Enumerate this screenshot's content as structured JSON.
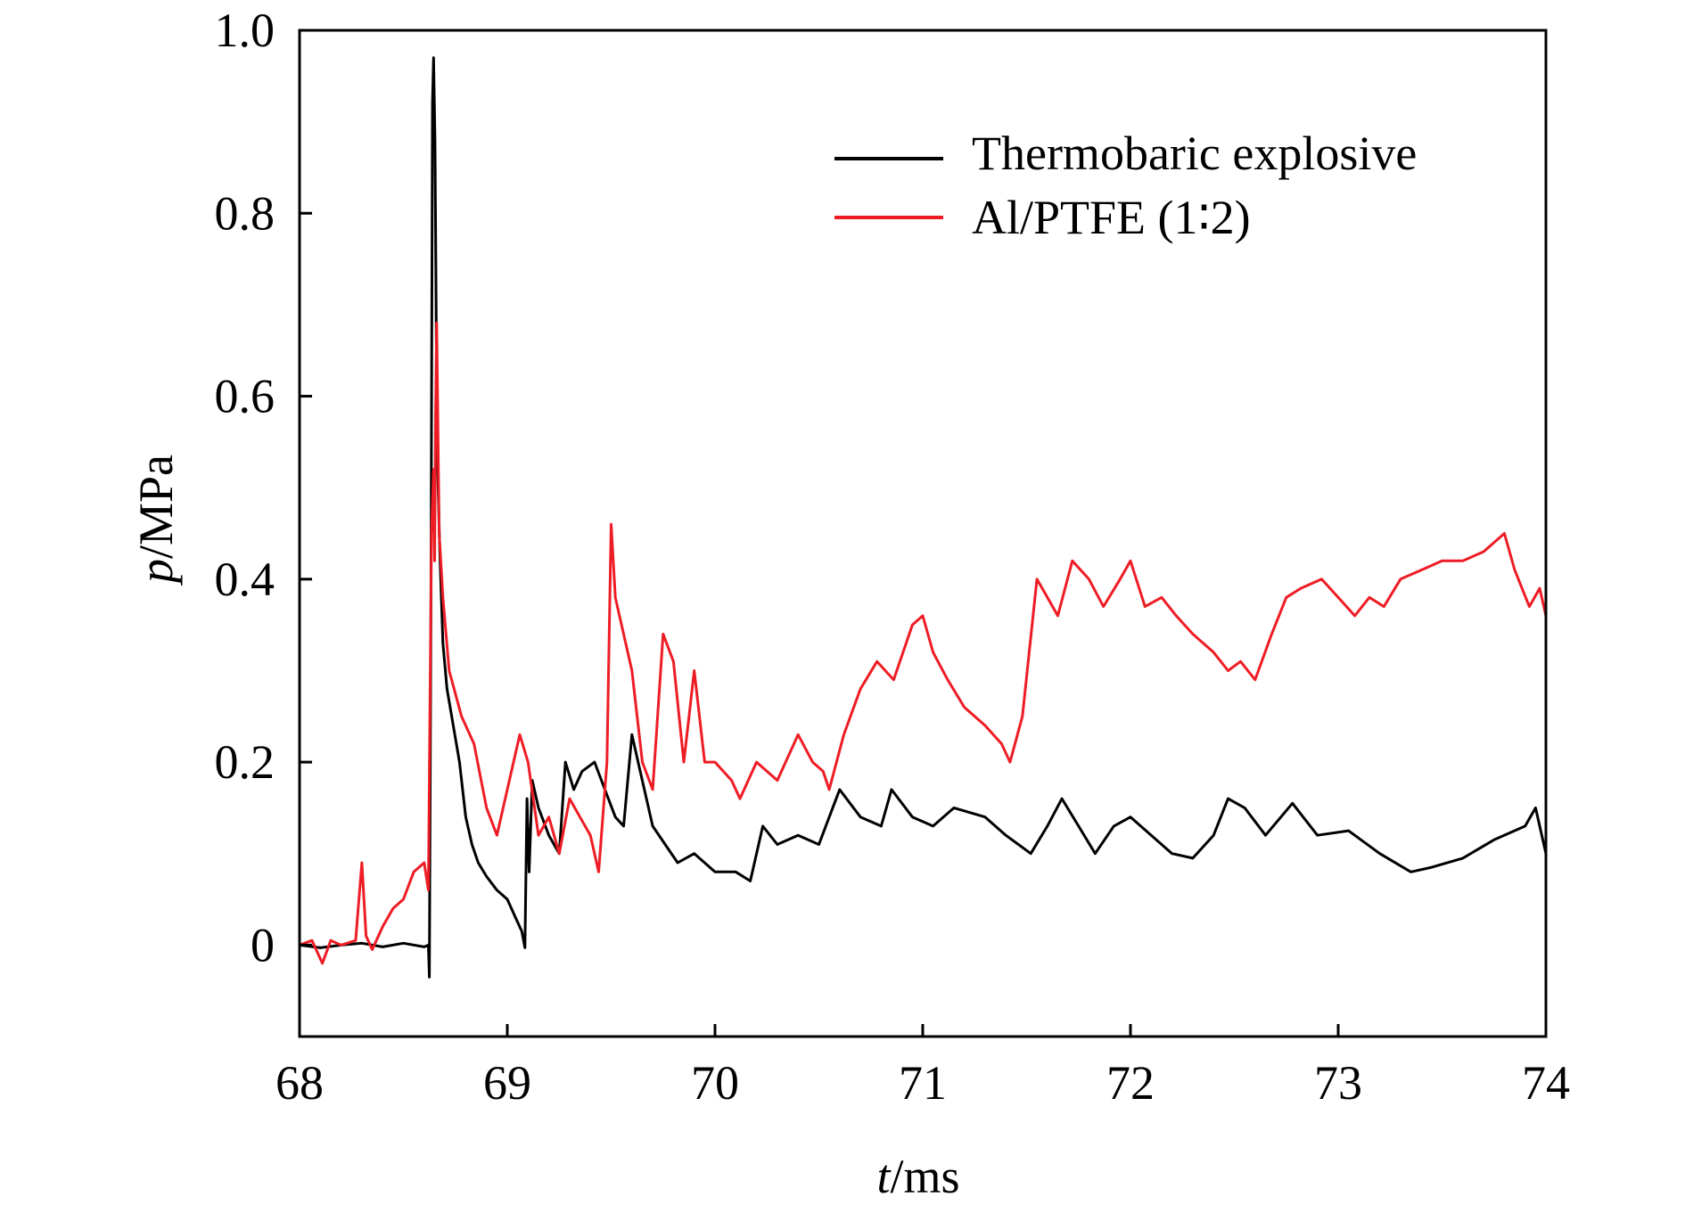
{
  "chart_data": {
    "type": "line",
    "xlabel_var": "t",
    "xlabel_unit": "/ms",
    "ylabel_var": "p",
    "ylabel_unit": "/MPa",
    "xlim": [
      68,
      74
    ],
    "ylim": [
      -0.1,
      1.0
    ],
    "xticks": [
      {
        "value": 68,
        "label": "68"
      },
      {
        "value": 69,
        "label": "69"
      },
      {
        "value": 70,
        "label": "70"
      },
      {
        "value": 71,
        "label": "71"
      },
      {
        "value": 72,
        "label": "72"
      },
      {
        "value": 73,
        "label": "73"
      },
      {
        "value": 74,
        "label": "74"
      }
    ],
    "yticks": [
      {
        "value": 0,
        "label": "0"
      },
      {
        "value": 0.2,
        "label": "0.2"
      },
      {
        "value": 0.4,
        "label": "0.4"
      },
      {
        "value": 0.6,
        "label": "0.6"
      },
      {
        "value": 0.8,
        "label": "0.8"
      },
      {
        "value": 1.0,
        "label": "1.0"
      }
    ],
    "grid": false,
    "legend_position": "top-right",
    "series": [
      {
        "name": "Thermobaric explosive",
        "color": "#000000",
        "points": [
          [
            68.0,
            0.0
          ],
          [
            68.1,
            -0.003
          ],
          [
            68.2,
            0.0
          ],
          [
            68.3,
            0.002
          ],
          [
            68.4,
            -0.002
          ],
          [
            68.5,
            0.002
          ],
          [
            68.6,
            -0.002
          ],
          [
            68.62,
            0.0
          ],
          [
            68.625,
            -0.035
          ],
          [
            68.632,
            0.35
          ],
          [
            68.64,
            0.92
          ],
          [
            68.645,
            0.97
          ],
          [
            68.652,
            0.88
          ],
          [
            68.662,
            0.55
          ],
          [
            68.675,
            0.43
          ],
          [
            68.69,
            0.33
          ],
          [
            68.71,
            0.28
          ],
          [
            68.74,
            0.24
          ],
          [
            68.77,
            0.2
          ],
          [
            68.8,
            0.14
          ],
          [
            68.83,
            0.11
          ],
          [
            68.86,
            0.09
          ],
          [
            68.9,
            0.075
          ],
          [
            68.95,
            0.06
          ],
          [
            69.0,
            0.05
          ],
          [
            69.04,
            0.03
          ],
          [
            69.07,
            0.015
          ],
          [
            69.085,
            -0.003
          ],
          [
            69.095,
            0.16
          ],
          [
            69.105,
            0.08
          ],
          [
            69.12,
            0.18
          ],
          [
            69.15,
            0.15
          ],
          [
            69.2,
            0.12
          ],
          [
            69.25,
            0.1
          ],
          [
            69.28,
            0.2
          ],
          [
            69.32,
            0.17
          ],
          [
            69.36,
            0.19
          ],
          [
            69.42,
            0.2
          ],
          [
            69.47,
            0.17
          ],
          [
            69.52,
            0.14
          ],
          [
            69.56,
            0.13
          ],
          [
            69.6,
            0.23
          ],
          [
            69.64,
            0.19
          ],
          [
            69.7,
            0.13
          ],
          [
            69.76,
            0.11
          ],
          [
            69.82,
            0.09
          ],
          [
            69.9,
            0.1
          ],
          [
            70.0,
            0.08
          ],
          [
            70.1,
            0.08
          ],
          [
            70.17,
            0.07
          ],
          [
            70.23,
            0.13
          ],
          [
            70.3,
            0.11
          ],
          [
            70.4,
            0.12
          ],
          [
            70.5,
            0.11
          ],
          [
            70.6,
            0.17
          ],
          [
            70.7,
            0.14
          ],
          [
            70.8,
            0.13
          ],
          [
            70.85,
            0.17
          ],
          [
            70.95,
            0.14
          ],
          [
            71.05,
            0.13
          ],
          [
            71.15,
            0.15
          ],
          [
            71.3,
            0.14
          ],
          [
            71.4,
            0.12
          ],
          [
            71.52,
            0.1
          ],
          [
            71.6,
            0.13
          ],
          [
            71.67,
            0.16
          ],
          [
            71.75,
            0.13
          ],
          [
            71.83,
            0.1
          ],
          [
            71.92,
            0.13
          ],
          [
            72.0,
            0.14
          ],
          [
            72.1,
            0.12
          ],
          [
            72.2,
            0.1
          ],
          [
            72.3,
            0.095
          ],
          [
            72.4,
            0.12
          ],
          [
            72.47,
            0.16
          ],
          [
            72.55,
            0.15
          ],
          [
            72.65,
            0.12
          ],
          [
            72.78,
            0.155
          ],
          [
            72.9,
            0.12
          ],
          [
            73.05,
            0.125
          ],
          [
            73.2,
            0.1
          ],
          [
            73.35,
            0.08
          ],
          [
            73.45,
            0.085
          ],
          [
            73.6,
            0.095
          ],
          [
            73.75,
            0.115
          ],
          [
            73.9,
            0.13
          ],
          [
            73.95,
            0.15
          ],
          [
            74.0,
            0.1
          ]
        ]
      },
      {
        "name": "Al/PTFE (1∶2)",
        "color": "#ee1c25",
        "points": [
          [
            68.0,
            0.0
          ],
          [
            68.06,
            0.005
          ],
          [
            68.11,
            -0.02
          ],
          [
            68.15,
            0.005
          ],
          [
            68.2,
            0.0
          ],
          [
            68.27,
            0.005
          ],
          [
            68.3,
            0.09
          ],
          [
            68.32,
            0.01
          ],
          [
            68.35,
            -0.005
          ],
          [
            68.4,
            0.02
          ],
          [
            68.45,
            0.04
          ],
          [
            68.5,
            0.05
          ],
          [
            68.55,
            0.08
          ],
          [
            68.6,
            0.09
          ],
          [
            68.62,
            0.06
          ],
          [
            68.635,
            0.45
          ],
          [
            68.645,
            0.52
          ],
          [
            68.65,
            0.42
          ],
          [
            68.655,
            0.58
          ],
          [
            68.66,
            0.68
          ],
          [
            68.672,
            0.45
          ],
          [
            68.69,
            0.38
          ],
          [
            68.72,
            0.3
          ],
          [
            68.78,
            0.25
          ],
          [
            68.84,
            0.22
          ],
          [
            68.9,
            0.15
          ],
          [
            68.95,
            0.12
          ],
          [
            69.0,
            0.17
          ],
          [
            69.06,
            0.23
          ],
          [
            69.1,
            0.2
          ],
          [
            69.15,
            0.12
          ],
          [
            69.2,
            0.14
          ],
          [
            69.25,
            0.1
          ],
          [
            69.3,
            0.16
          ],
          [
            69.35,
            0.14
          ],
          [
            69.4,
            0.12
          ],
          [
            69.44,
            0.08
          ],
          [
            69.48,
            0.2
          ],
          [
            69.5,
            0.46
          ],
          [
            69.52,
            0.38
          ],
          [
            69.56,
            0.34
          ],
          [
            69.6,
            0.3
          ],
          [
            69.65,
            0.2
          ],
          [
            69.7,
            0.17
          ],
          [
            69.75,
            0.34
          ],
          [
            69.8,
            0.31
          ],
          [
            69.85,
            0.2
          ],
          [
            69.9,
            0.3
          ],
          [
            69.95,
            0.2
          ],
          [
            70.0,
            0.2
          ],
          [
            70.08,
            0.18
          ],
          [
            70.12,
            0.16
          ],
          [
            70.2,
            0.2
          ],
          [
            70.3,
            0.18
          ],
          [
            70.4,
            0.23
          ],
          [
            70.47,
            0.2
          ],
          [
            70.52,
            0.19
          ],
          [
            70.55,
            0.17
          ],
          [
            70.62,
            0.23
          ],
          [
            70.7,
            0.28
          ],
          [
            70.78,
            0.31
          ],
          [
            70.86,
            0.29
          ],
          [
            70.95,
            0.35
          ],
          [
            71.0,
            0.36
          ],
          [
            71.05,
            0.32
          ],
          [
            71.12,
            0.29
          ],
          [
            71.2,
            0.26
          ],
          [
            71.3,
            0.24
          ],
          [
            71.38,
            0.22
          ],
          [
            71.42,
            0.2
          ],
          [
            71.48,
            0.25
          ],
          [
            71.55,
            0.4
          ],
          [
            71.6,
            0.38
          ],
          [
            71.65,
            0.36
          ],
          [
            71.72,
            0.42
          ],
          [
            71.8,
            0.4
          ],
          [
            71.87,
            0.37
          ],
          [
            71.95,
            0.4
          ],
          [
            72.0,
            0.42
          ],
          [
            72.07,
            0.37
          ],
          [
            72.15,
            0.38
          ],
          [
            72.22,
            0.36
          ],
          [
            72.3,
            0.34
          ],
          [
            72.4,
            0.32
          ],
          [
            72.47,
            0.3
          ],
          [
            72.53,
            0.31
          ],
          [
            72.6,
            0.29
          ],
          [
            72.68,
            0.34
          ],
          [
            72.75,
            0.38
          ],
          [
            72.82,
            0.39
          ],
          [
            72.92,
            0.4
          ],
          [
            73.0,
            0.38
          ],
          [
            73.08,
            0.36
          ],
          [
            73.15,
            0.38
          ],
          [
            73.22,
            0.37
          ],
          [
            73.3,
            0.4
          ],
          [
            73.4,
            0.41
          ],
          [
            73.5,
            0.42
          ],
          [
            73.6,
            0.42
          ],
          [
            73.7,
            0.43
          ],
          [
            73.8,
            0.45
          ],
          [
            73.85,
            0.41
          ],
          [
            73.92,
            0.37
          ],
          [
            73.97,
            0.39
          ],
          [
            74.0,
            0.36
          ]
        ]
      }
    ]
  }
}
